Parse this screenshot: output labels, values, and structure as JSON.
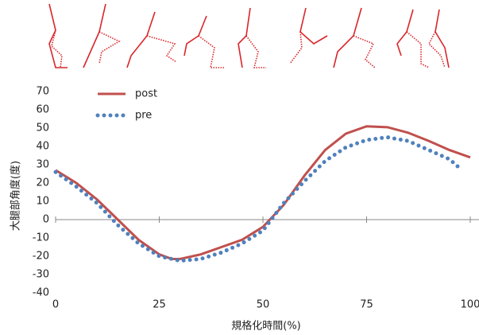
{
  "chart_data": {
    "type": "line",
    "x_label": "規格化時間(%)",
    "y_label": "大腿部角度(度)",
    "xlim": [
      0,
      100
    ],
    "xticks": [
      0,
      25,
      50,
      75,
      100
    ],
    "ylim": [
      -40,
      70
    ],
    "yticks": [
      -40,
      -30,
      -20,
      -10,
      0,
      10,
      20,
      30,
      40,
      50,
      60,
      70
    ],
    "legend": "upper-left",
    "series": [
      {
        "name": "post",
        "color": "#c0504d",
        "style": "solid",
        "x": [
          0,
          5,
          10,
          15,
          20,
          25,
          28,
          30,
          35,
          40,
          45,
          50,
          55,
          60,
          65,
          70,
          75,
          80,
          85,
          90,
          95,
          100
        ],
        "values": [
          27,
          20,
          11,
          0,
          -11,
          -19,
          -21.5,
          -21.5,
          -19,
          -15,
          -11,
          -4,
          8,
          24,
          38,
          47,
          51,
          50.5,
          47.5,
          43,
          38,
          34
        ]
      },
      {
        "name": "pre",
        "color": "#4f81bd",
        "style": "dotted",
        "x": [
          0,
          5,
          10,
          15,
          20,
          25,
          30,
          35,
          40,
          45,
          50,
          55,
          60,
          65,
          70,
          75,
          80,
          85,
          90,
          95,
          97
        ],
        "values": [
          26,
          18,
          9,
          -3,
          -13,
          -20,
          -22.5,
          -21.5,
          -18,
          -13,
          -6,
          9,
          21,
          32,
          39.5,
          43.5,
          45,
          43,
          38,
          33,
          29
        ]
      }
    ]
  }
}
